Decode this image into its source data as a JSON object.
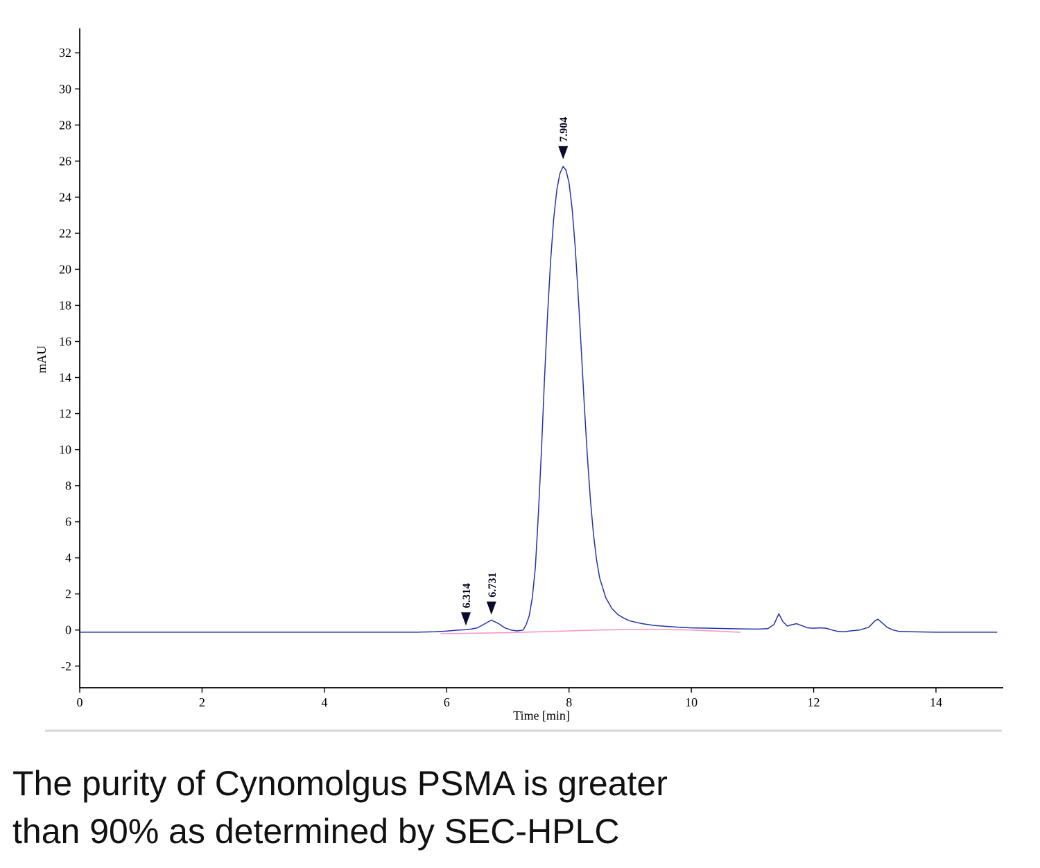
{
  "caption": {
    "text": "The purity of Cynomolgus PSMA is greater\nthan 90% as determined by SEC-HPLC"
  },
  "chart_data": {
    "type": "line",
    "title": "",
    "xlabel": "Time [min]",
    "ylabel": "mAU",
    "xlim": [
      0,
      15.1
    ],
    "ylim": [
      -3.2,
      33.2
    ],
    "x_ticks": [
      0,
      2,
      4,
      6,
      8,
      10,
      12,
      14
    ],
    "y_ticks": [
      -2,
      0,
      2,
      4,
      6,
      8,
      10,
      12,
      14,
      16,
      18,
      20,
      22,
      24,
      26,
      28,
      30,
      32
    ],
    "grid": false,
    "legend": "none",
    "axis_color": "#000000",
    "marker_color": "#0a0a2e",
    "series": [
      {
        "name": "integration-baseline",
        "color": "#f49ac1",
        "width": 1.6,
        "points": [
          [
            5.9,
            -0.2
          ],
          [
            6.4,
            -0.18
          ],
          [
            7.0,
            -0.15
          ],
          [
            7.5,
            -0.1
          ],
          [
            8.0,
            -0.05
          ],
          [
            8.5,
            0.0
          ],
          [
            9.0,
            0.03
          ],
          [
            9.5,
            0.03
          ],
          [
            10.0,
            0.0
          ],
          [
            10.4,
            -0.06
          ],
          [
            10.8,
            -0.12
          ]
        ]
      },
      {
        "name": "uv-absorbance-trace",
        "color": "#2233aa",
        "width": 1.5,
        "points": [
          [
            0,
            -0.12
          ],
          [
            0.5,
            -0.12
          ],
          [
            1,
            -0.12
          ],
          [
            1.5,
            -0.12
          ],
          [
            2,
            -0.12
          ],
          [
            2.5,
            -0.12
          ],
          [
            3,
            -0.12
          ],
          [
            3.5,
            -0.12
          ],
          [
            4,
            -0.12
          ],
          [
            4.5,
            -0.12
          ],
          [
            5,
            -0.12
          ],
          [
            5.5,
            -0.12
          ],
          [
            5.8,
            -0.1
          ],
          [
            6.0,
            -0.06
          ],
          [
            6.1,
            -0.03
          ],
          [
            6.2,
            0.0
          ],
          [
            6.314,
            0.02
          ],
          [
            6.4,
            0.05
          ],
          [
            6.5,
            0.12
          ],
          [
            6.6,
            0.3
          ],
          [
            6.73,
            0.55
          ],
          [
            6.85,
            0.35
          ],
          [
            6.95,
            0.12
          ],
          [
            7.05,
            0.0
          ],
          [
            7.15,
            -0.05
          ],
          [
            7.25,
            0.0
          ],
          [
            7.3,
            0.3
          ],
          [
            7.35,
            0.8
          ],
          [
            7.4,
            1.8
          ],
          [
            7.45,
            3.5
          ],
          [
            7.5,
            6.5
          ],
          [
            7.55,
            10.0
          ],
          [
            7.6,
            14.0
          ],
          [
            7.65,
            17.5
          ],
          [
            7.7,
            20.5
          ],
          [
            7.75,
            22.8
          ],
          [
            7.8,
            24.4
          ],
          [
            7.85,
            25.3
          ],
          [
            7.904,
            25.7
          ],
          [
            7.95,
            25.5
          ],
          [
            8.0,
            24.8
          ],
          [
            8.05,
            23.4
          ],
          [
            8.1,
            21.3
          ],
          [
            8.15,
            18.6
          ],
          [
            8.2,
            15.6
          ],
          [
            8.25,
            12.5
          ],
          [
            8.3,
            9.6
          ],
          [
            8.35,
            7.2
          ],
          [
            8.4,
            5.3
          ],
          [
            8.45,
            3.9
          ],
          [
            8.5,
            2.9
          ],
          [
            8.6,
            1.8
          ],
          [
            8.7,
            1.2
          ],
          [
            8.8,
            0.85
          ],
          [
            8.9,
            0.65
          ],
          [
            9.0,
            0.5
          ],
          [
            9.2,
            0.35
          ],
          [
            9.4,
            0.25
          ],
          [
            9.6,
            0.2
          ],
          [
            9.8,
            0.15
          ],
          [
            10.0,
            0.12
          ],
          [
            10.3,
            0.1
          ],
          [
            10.6,
            0.08
          ],
          [
            10.9,
            0.06
          ],
          [
            11.1,
            0.05
          ],
          [
            11.25,
            0.08
          ],
          [
            11.35,
            0.3
          ],
          [
            11.43,
            0.9
          ],
          [
            11.5,
            0.45
          ],
          [
            11.57,
            0.22
          ],
          [
            11.65,
            0.3
          ],
          [
            11.72,
            0.35
          ],
          [
            11.8,
            0.25
          ],
          [
            11.9,
            0.12
          ],
          [
            12.0,
            0.1
          ],
          [
            12.1,
            0.12
          ],
          [
            12.2,
            0.1
          ],
          [
            12.3,
            0.0
          ],
          [
            12.4,
            -0.08
          ],
          [
            12.5,
            -0.1
          ],
          [
            12.6,
            -0.05
          ],
          [
            12.75,
            0.0
          ],
          [
            12.9,
            0.15
          ],
          [
            13.0,
            0.5
          ],
          [
            13.05,
            0.6
          ],
          [
            13.12,
            0.4
          ],
          [
            13.2,
            0.15
          ],
          [
            13.3,
            0.0
          ],
          [
            13.4,
            -0.08
          ],
          [
            13.6,
            -0.1
          ],
          [
            14.0,
            -0.12
          ],
          [
            14.5,
            -0.12
          ],
          [
            15.0,
            -0.12
          ]
        ]
      }
    ],
    "peaks": [
      {
        "label": "6.314",
        "time": 6.314,
        "tip_mau": 0.25
      },
      {
        "label": "6.731",
        "time": 6.731,
        "tip_mau": 0.85
      },
      {
        "label": "7.904",
        "time": 7.904,
        "tip_mau": 26.1
      }
    ]
  }
}
